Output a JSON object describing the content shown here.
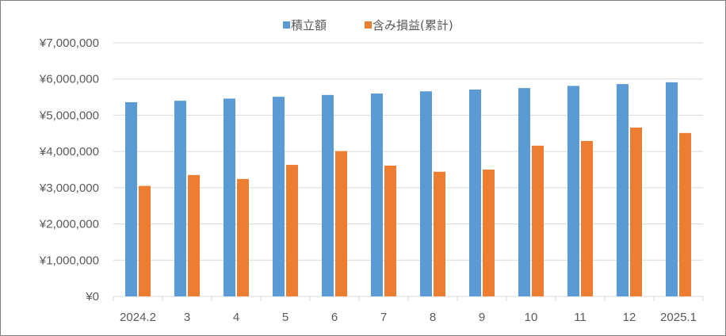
{
  "chart_data": {
    "type": "bar",
    "categories": [
      "2024.2",
      "3",
      "4",
      "5",
      "6",
      "7",
      "8",
      "9",
      "10",
      "11",
      "12",
      "2025.1"
    ],
    "series": [
      {
        "name": "積立額",
        "color": "#5b9bd5",
        "values": [
          5360000,
          5400000,
          5460000,
          5510000,
          5560000,
          5600000,
          5660000,
          5710000,
          5750000,
          5810000,
          5860000,
          5910000
        ]
      },
      {
        "name": "含み損益(累計)",
        "color": "#ed7d31",
        "values": [
          3050000,
          3350000,
          3240000,
          3630000,
          4010000,
          3610000,
          3440000,
          3500000,
          4160000,
          4290000,
          4660000,
          4510000
        ]
      }
    ],
    "yticks": [
      "¥0",
      "¥1,000,000",
      "¥2,000,000",
      "¥3,000,000",
      "¥4,000,000",
      "¥5,000,000",
      "¥6,000,000",
      "¥7,000,000"
    ],
    "ylim": [
      0,
      7000000
    ],
    "title": "",
    "xlabel": "",
    "ylabel": "",
    "grid": true,
    "legend_position": "top-center"
  }
}
